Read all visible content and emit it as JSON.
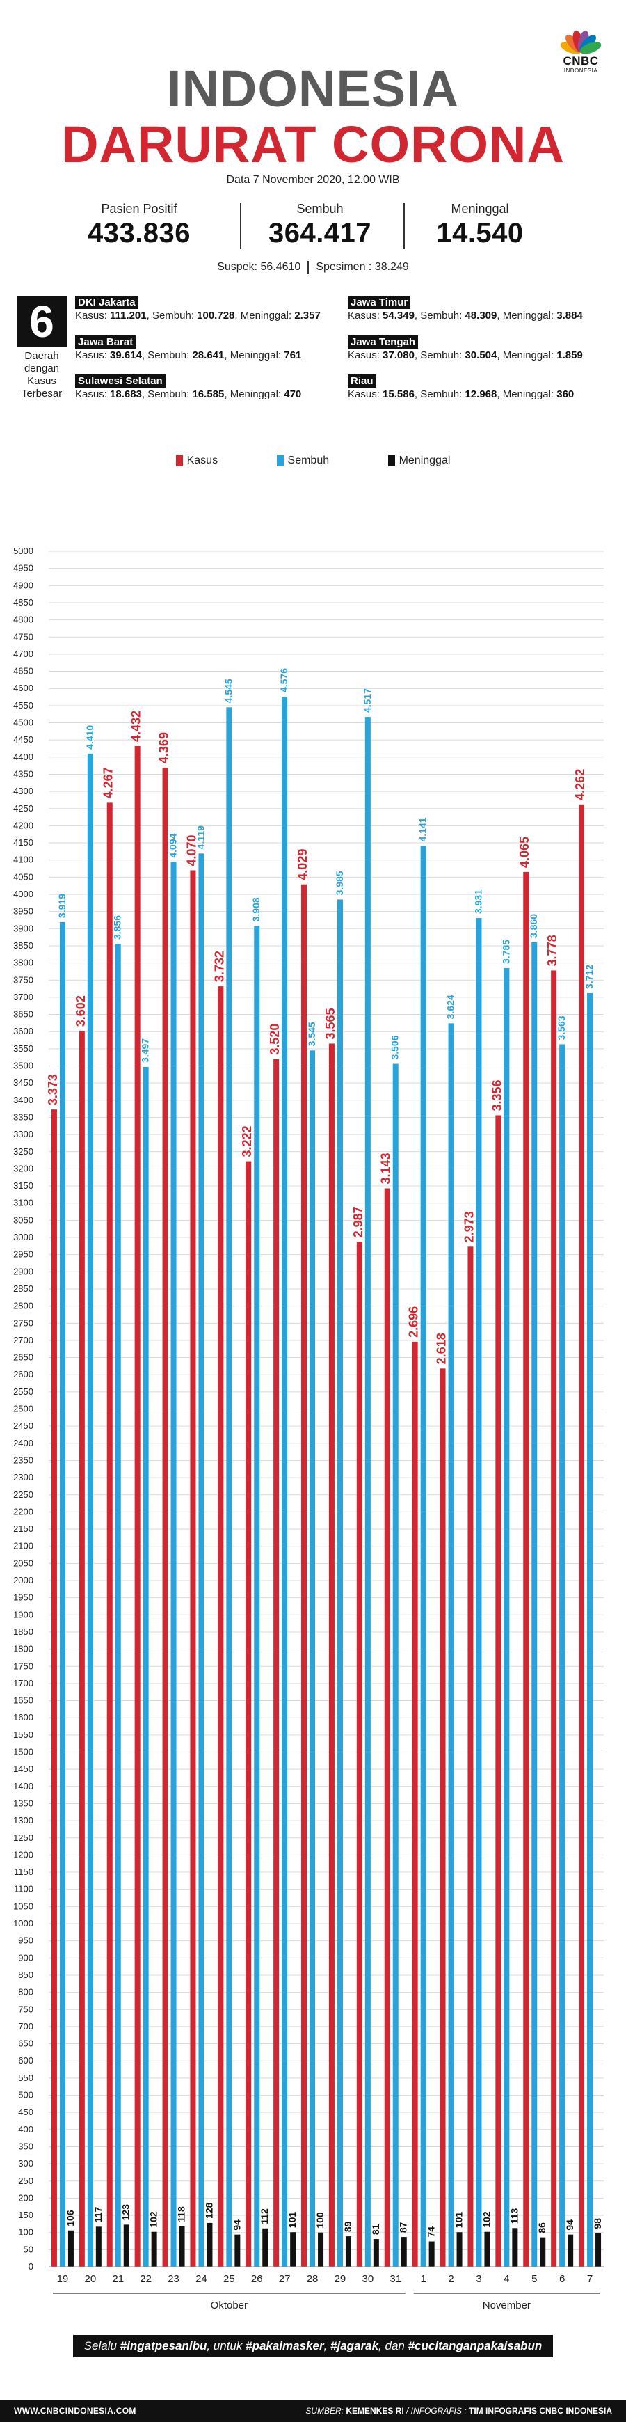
{
  "brand": {
    "logo_text": "CNBC",
    "logo_subtext": "INDONESIA",
    "colors": {
      "peacock": [
        "#f2a900",
        "#e8712d",
        "#d22630",
        "#8b4f9c",
        "#0079c1",
        "#2fa84f"
      ]
    }
  },
  "header": {
    "title_line1": "INDONESIA",
    "title_line2": "DARURAT CORONA",
    "date": "Data 7 November 2020, 12.00 WIB"
  },
  "stats": [
    {
      "label": "Pasien Positif",
      "value": "433.836"
    },
    {
      "label": "Sembuh",
      "value": "364.417"
    },
    {
      "label": "Meninggal",
      "value": "14.540"
    }
  ],
  "sub_stats": {
    "suspek": "Suspek: 56.4610",
    "spesimen": "Spesimen : 38.249"
  },
  "regions_block": {
    "number": "6",
    "label_lines": [
      "Daerah",
      "dengan",
      "Kasus",
      "Terbesar"
    ],
    "regions": [
      {
        "name": "DKI Jakarta",
        "kasus": "111.201",
        "sembuh": "100.728",
        "meninggal": "2.357"
      },
      {
        "name": "Jawa Timur",
        "kasus": "54.349",
        "sembuh": "48.309",
        "meninggal": "3.884"
      },
      {
        "name": "Jawa Barat",
        "kasus": "39.614",
        "sembuh": "28.641",
        "meninggal": "761"
      },
      {
        "name": "Jawa Tengah",
        "kasus": "37.080",
        "sembuh": "30.504",
        "meninggal": "1.859"
      },
      {
        "name": "Sulawesi Selatan",
        "kasus": "18.683",
        "sembuh": "16.585",
        "meninggal": "470"
      },
      {
        "name": "Riau",
        "kasus": "15.586",
        "sembuh": "12.968",
        "meninggal": "360"
      }
    ],
    "labels": {
      "kasus": "Kasus: ",
      "sembuh": ", Sembuh: ",
      "meninggal": ", Meninggal: "
    }
  },
  "chart_data": {
    "type": "bar",
    "categories": [
      "19",
      "20",
      "21",
      "22",
      "23",
      "24",
      "25",
      "26",
      "27",
      "28",
      "29",
      "30",
      "31",
      "1",
      "2",
      "3",
      "4",
      "5",
      "6",
      "7"
    ],
    "month_groups": [
      {
        "label": "Oktober",
        "from": 0,
        "to": 12
      },
      {
        "label": "November",
        "from": 13,
        "to": 19
      }
    ],
    "series": [
      {
        "name": "Kasus",
        "color": "#d22630",
        "values": [
          3373,
          3602,
          4267,
          4432,
          4369,
          4070,
          3732,
          3222,
          3520,
          4029,
          3565,
          2987,
          3143,
          2696,
          2618,
          2973,
          3356,
          4065,
          3778,
          4262
        ],
        "labels": [
          "3.373",
          "3.602",
          "4.267",
          "4.432",
          "4.369",
          "4.070",
          "3.732",
          "3.222",
          "3.520",
          "4.029",
          "3.565",
          "2.987",
          "3.143",
          "2.696",
          "2.618",
          "2.973",
          "3.356",
          "4.065",
          "3.778",
          "4.262"
        ]
      },
      {
        "name": "Sembuh",
        "color": "#29a3dc",
        "values": [
          3919,
          4410,
          3856,
          3497,
          4094,
          4119,
          4545,
          3908,
          4576,
          3545,
          3985,
          4517,
          3506,
          4141,
          3624,
          3931,
          3785,
          3860,
          3563,
          3712
        ],
        "labels": [
          "3.919",
          "4.410",
          "3.856",
          "3.497",
          "4.094",
          "4.119",
          "4.545",
          "3.908",
          "4.576",
          "3.545",
          "3.985",
          "4.517",
          "3.506",
          "4.141",
          "3.624",
          "3.931",
          "3.785",
          "3.860",
          "3.563",
          "3.712"
        ]
      },
      {
        "name": "Meninggal",
        "color": "#111111",
        "values": [
          106,
          117,
          123,
          102,
          118,
          128,
          94,
          112,
          101,
          100,
          89,
          81,
          87,
          74,
          101,
          102,
          113,
          86,
          94,
          98
        ],
        "labels": [
          "106",
          "117",
          "123",
          "102",
          "118",
          "128",
          "94",
          "112",
          "101",
          "100",
          "89",
          "81",
          "87",
          "74",
          "101",
          "102",
          "113",
          "86",
          "94",
          "98"
        ]
      }
    ],
    "ylim": [
      0,
      5000
    ],
    "y_tick_step": 50,
    "grid": true,
    "legend": "top-center"
  },
  "footer": {
    "banner_parts": [
      "Selalu ",
      "#ingatpesanibu",
      ", untuk ",
      "#pakaimasker",
      ", ",
      "#jagarak",
      ", dan ",
      "#cucitanganpakaisabun"
    ],
    "website": "WWW.CNBCINDONESIA.COM",
    "source_prefix": "SUMBER: ",
    "source": "KEMENKES RI",
    "infografis_prefix": " / INFOGRAFIS : ",
    "infografis": "TIM INFOGRAFIS CNBC INDONESIA"
  }
}
